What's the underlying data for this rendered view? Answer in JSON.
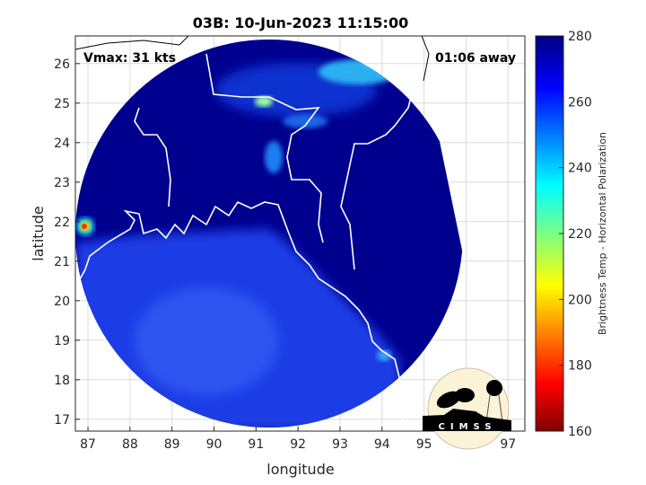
{
  "title": "03B: 10-Jun-2023 11:15:00",
  "annotations": {
    "vmax": "Vmax: 31 kts",
    "away": "01:06 away"
  },
  "axes": {
    "xlabel": "longitude",
    "ylabel": "latitude",
    "xlim": [
      86.7,
      97.4
    ],
    "ylim": [
      16.7,
      26.7
    ],
    "xticks": [
      "87",
      "88",
      "89",
      "90",
      "91",
      "92",
      "93",
      "94",
      "95",
      "96",
      "97"
    ],
    "yticks": [
      "17",
      "18",
      "19",
      "20",
      "21",
      "22",
      "23",
      "24",
      "25",
      "26"
    ],
    "grid": true
  },
  "colorbar": {
    "label": "Brightness Temp - Horizontal Polarization",
    "range": [
      160,
      280
    ],
    "ticks": [
      "280",
      "260",
      "240",
      "220",
      "200",
      "180",
      "160"
    ],
    "colormap": "jet",
    "colors": [
      "#800000",
      "#ff0000",
      "#ffff00",
      "#00ffff",
      "#0000ff",
      "#000080"
    ]
  },
  "logo": {
    "text": "CIMSS"
  },
  "colors": {
    "background_cold": "#00008f",
    "ocean_warm": "#1c3ee6",
    "coastline": "#ffffff"
  }
}
